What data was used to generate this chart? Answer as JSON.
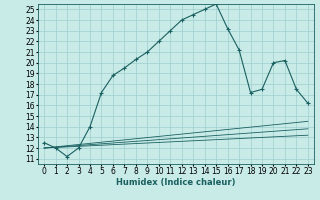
{
  "xlabel": "Humidex (Indice chaleur)",
  "ylabel": "",
  "background_color": "#c8ebe8",
  "grid_color": "#9ecece",
  "line_color": "#1a6060",
  "xlim": [
    -0.5,
    23.5
  ],
  "ylim": [
    10.5,
    25.5
  ],
  "xticks": [
    0,
    1,
    2,
    3,
    4,
    5,
    6,
    7,
    8,
    9,
    10,
    11,
    12,
    13,
    14,
    15,
    16,
    17,
    18,
    19,
    20,
    21,
    22,
    23
  ],
  "yticks": [
    11,
    12,
    13,
    14,
    15,
    16,
    17,
    18,
    19,
    20,
    21,
    22,
    23,
    24,
    25
  ],
  "main_x": [
    0,
    1,
    2,
    3,
    4,
    5,
    6,
    7,
    8,
    9,
    10,
    11,
    12,
    13,
    14,
    15,
    16,
    17,
    18,
    19,
    20,
    21,
    22,
    23
  ],
  "main_y": [
    12.5,
    12.0,
    11.2,
    12.0,
    14.0,
    17.2,
    18.8,
    19.5,
    20.3,
    21.0,
    22.0,
    23.0,
    24.0,
    24.5,
    25.0,
    25.5,
    23.2,
    21.2,
    17.2,
    17.5,
    20.0,
    20.2,
    17.5,
    16.2
  ],
  "trend1_x": [
    0,
    23
  ],
  "trend1_y": [
    12.0,
    14.5
  ],
  "trend2_x": [
    0,
    23
  ],
  "trend2_y": [
    12.0,
    13.8
  ],
  "trend3_x": [
    0,
    23
  ],
  "trend3_y": [
    12.0,
    13.2
  ],
  "marker": "+",
  "markersize": 3,
  "markeredgewidth": 0.8,
  "linewidth": 0.8,
  "trend_linewidth": 0.6,
  "fontsize_label": 6,
  "fontsize_tick": 5.5
}
